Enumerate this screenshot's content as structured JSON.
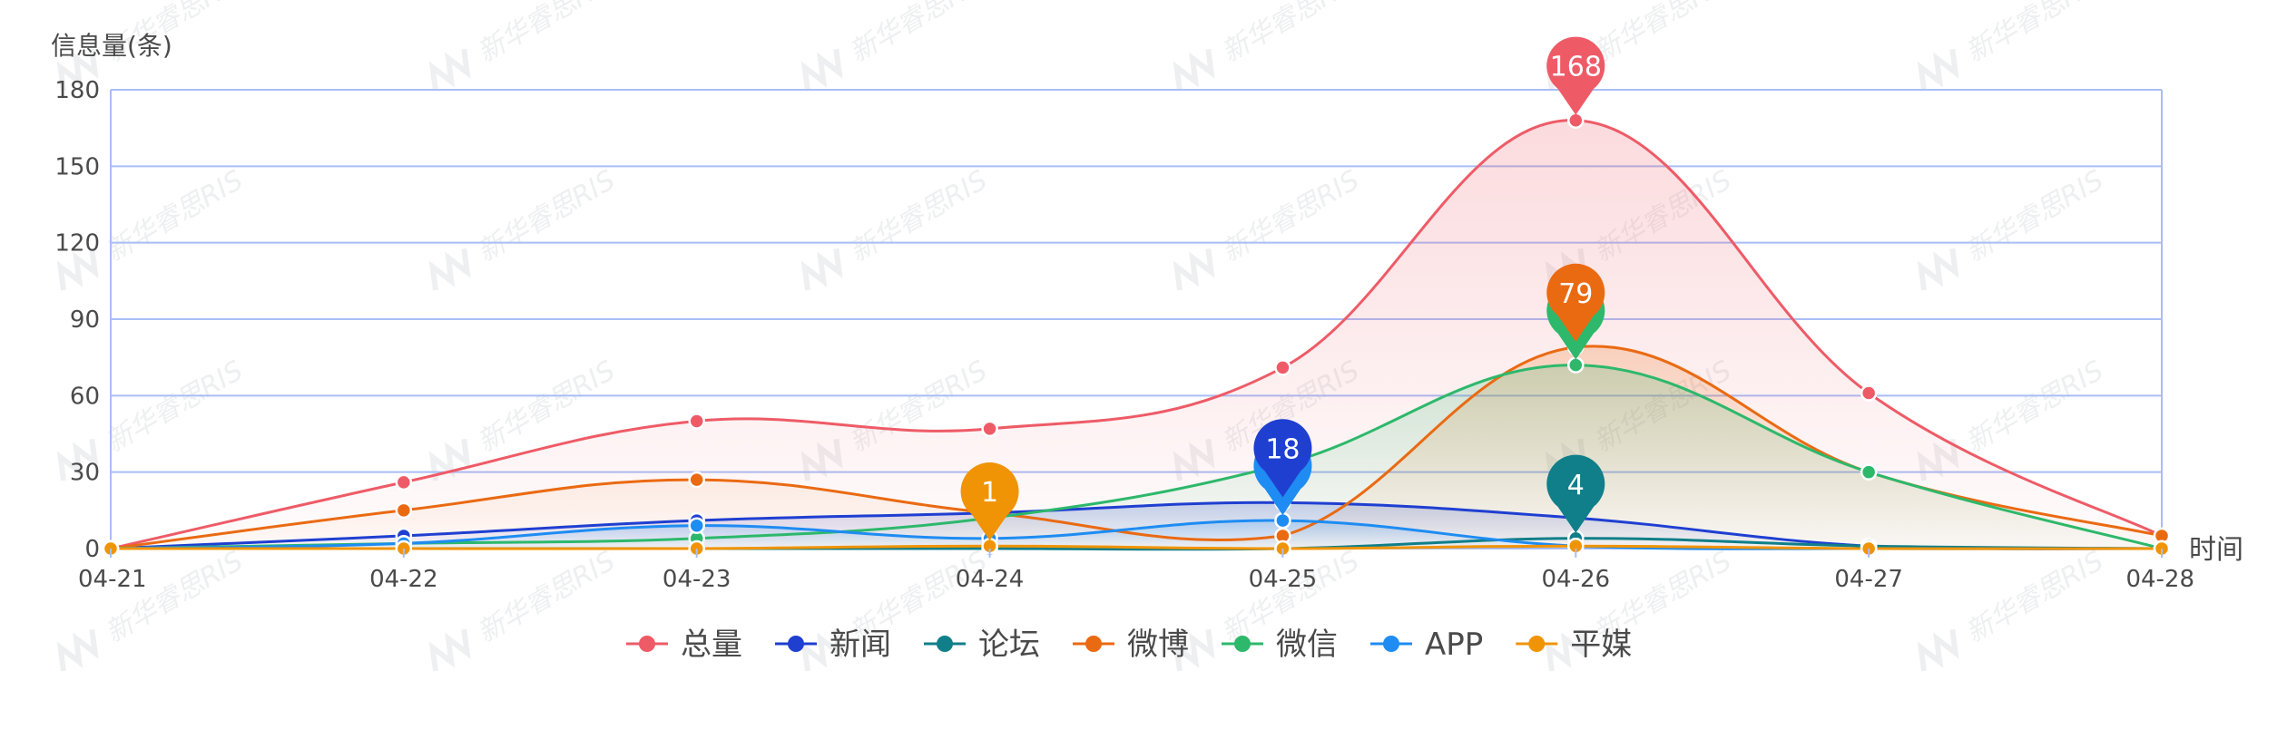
{
  "chart_data": {
    "type": "line",
    "ylabel": "信息量(条)",
    "xlabel": "时间",
    "categories": [
      "04-21",
      "04-22",
      "04-23",
      "04-24",
      "04-25",
      "04-26",
      "04-27",
      "04-28"
    ],
    "ylim": [
      0,
      180
    ],
    "yticks": [
      0,
      30,
      60,
      90,
      120,
      150,
      180
    ],
    "grid": true,
    "legend_position": "bottom",
    "watermark": "新华睿思RIS",
    "series": [
      {
        "name": "总量",
        "color": "#ee5b67",
        "values": [
          0,
          26,
          50,
          47,
          71,
          168,
          61,
          5
        ],
        "area": true,
        "peak_index": 5
      },
      {
        "name": "新闻",
        "color": "#1f3fd1",
        "values": [
          0,
          5,
          11,
          14,
          18,
          12,
          1,
          0
        ],
        "area": true,
        "peak_index": 4
      },
      {
        "name": "论坛",
        "color": "#107f89",
        "values": [
          0,
          0,
          0,
          0,
          0,
          4,
          1,
          0
        ],
        "area": false,
        "peak_index": 5
      },
      {
        "name": "微博",
        "color": "#ea6a12",
        "values": [
          0,
          15,
          27,
          14,
          5,
          79,
          30,
          5
        ],
        "area": true,
        "peak_index": 5
      },
      {
        "name": "微信",
        "color": "#2db86b",
        "values": [
          0,
          2,
          4,
          12,
          33,
          72,
          30,
          0
        ],
        "area": true,
        "peak_index": 5
      },
      {
        "name": "APP",
        "color": "#1e8cf2",
        "values": [
          0,
          2,
          9,
          4,
          11,
          1,
          0,
          0
        ],
        "area": true,
        "peak_index": 4
      },
      {
        "name": "平媒",
        "color": "#f09405",
        "values": [
          0,
          0,
          0,
          1,
          0,
          1,
          0,
          0
        ],
        "area": false,
        "peak_index": 3
      }
    ],
    "peak_labels": [
      {
        "series": "总量",
        "text": "168",
        "color": "#ee5b67",
        "index": 5,
        "value": 168
      },
      {
        "series": "微博",
        "text": "79",
        "color": "#ea6a12",
        "index": 5,
        "value": 79
      },
      {
        "series": "微信",
        "text": "72",
        "color": "#2db86b",
        "index": 5,
        "value": 72
      },
      {
        "series": "新闻",
        "text": "18",
        "color": "#1f3fd1",
        "index": 4,
        "value": 18
      },
      {
        "series": "APP",
        "text": "11",
        "color": "#1e8cf2",
        "index": 4,
        "value": 11
      },
      {
        "series": "论坛",
        "text": "4",
        "color": "#107f89",
        "index": 5,
        "value": 4
      },
      {
        "series": "平媒",
        "text": "1",
        "color": "#f09405",
        "index": 3,
        "value": 1
      }
    ]
  }
}
